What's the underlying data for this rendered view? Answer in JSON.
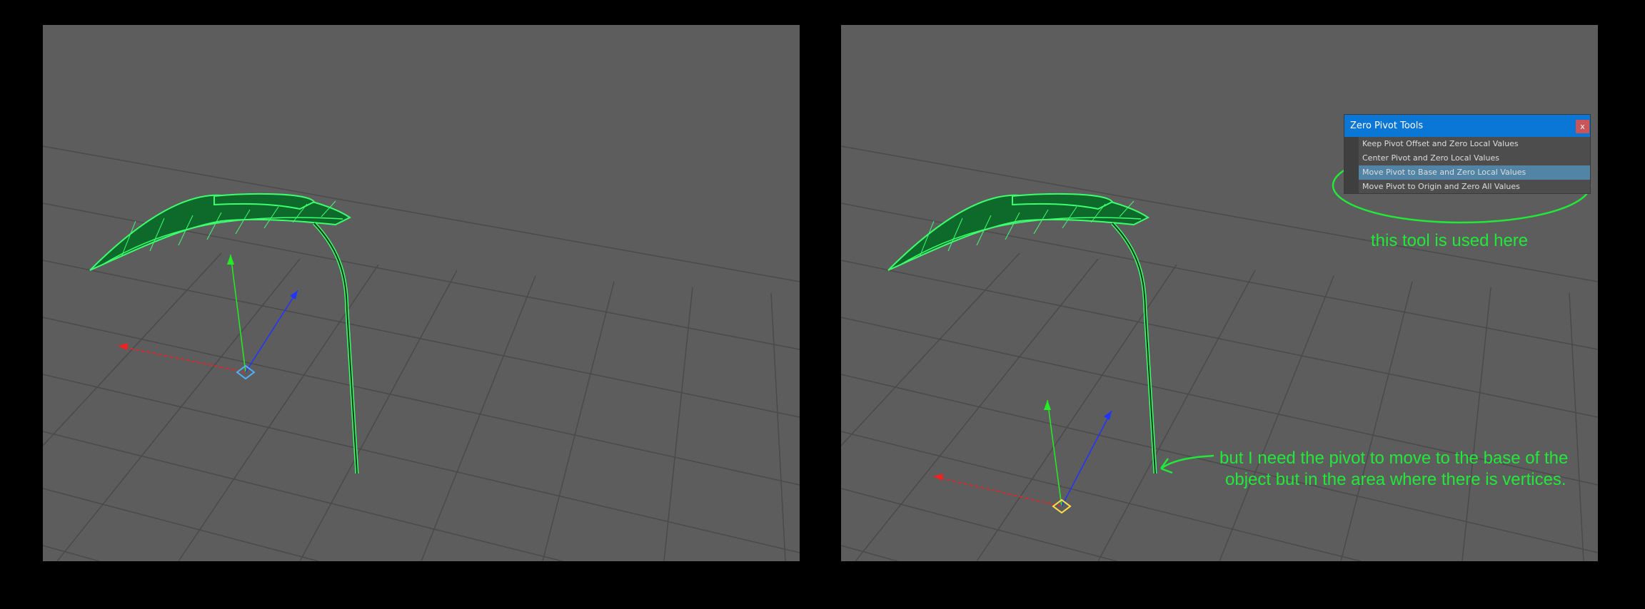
{
  "dialog": {
    "title": "Zero Pivot Tools",
    "close_label": "x",
    "items": [
      {
        "label": "Keep Pivot Offset and Zero Local Values",
        "selected": false
      },
      {
        "label": "Center Pivot and Zero Local Values",
        "selected": false
      },
      {
        "label": "Move Pivot to Base and Zero Local Values",
        "selected": true
      },
      {
        "label": "Move Pivot to Origin and Zero All Values",
        "selected": false
      }
    ]
  },
  "annotations": {
    "tool_note": "this tool is used here",
    "pivot_note_line1": "but I need the pivot to move to the base of the",
    "pivot_note_line2": "object but in the area where there is vertices."
  },
  "colors": {
    "viewport_bg": "#5d5d5d",
    "mesh_wire": "#3dff6e",
    "mesh_fill": "#0d6a2a",
    "annotation": "#22e83a",
    "pivot_left": "#4fb0ff",
    "pivot_right": "#ffe14a"
  }
}
